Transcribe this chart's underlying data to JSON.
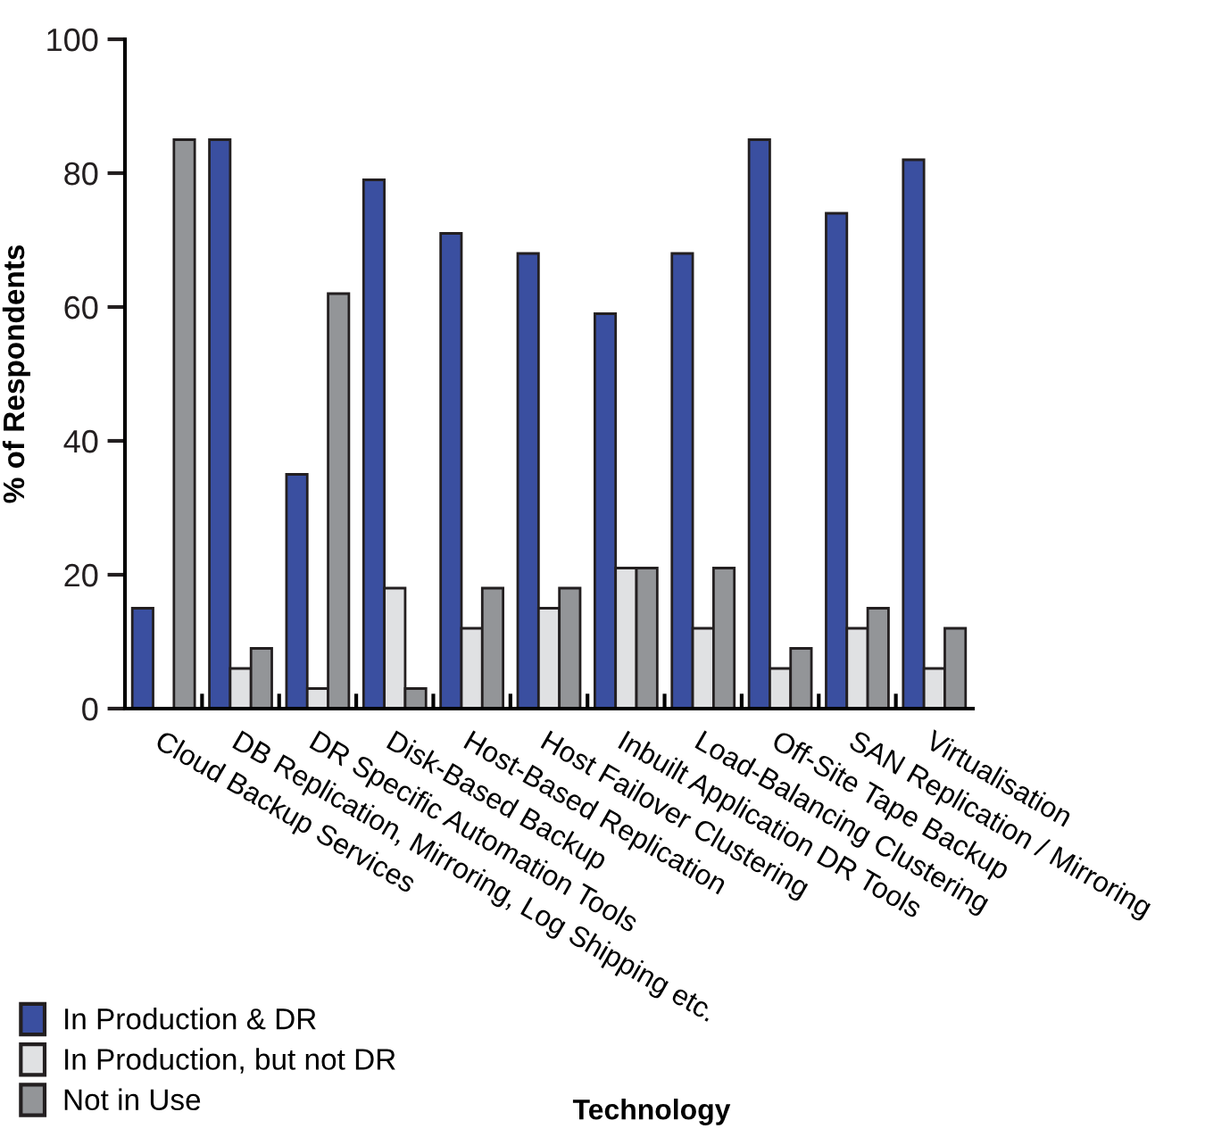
{
  "chart_data": {
    "type": "bar",
    "xlabel": "Technology",
    "ylabel": "% of Respondents",
    "categories": [
      "Cloud Backup Services",
      "DB Replication, Mirroring, Log Shipping etc.",
      "DR Specific Automation Tools",
      "Disk-Based Backup",
      "Host-Based Replication",
      "Host Failover Clustering",
      "Inbuilt Application DR Tools",
      "Load-Balancing Clustering",
      "Off-Site Tape Backup",
      "SAN Replication / Mirroring",
      "Virtualisation"
    ],
    "series": [
      {
        "name": "In Production & DR",
        "color": "#3a4fa0",
        "values": [
          15,
          85,
          35,
          79,
          71,
          68,
          59,
          68,
          85,
          74,
          82
        ]
      },
      {
        "name": "In Production, but not DR",
        "color": "#e0e1e3",
        "values": [
          null,
          6,
          3,
          18,
          12,
          15,
          21,
          12,
          6,
          12,
          6
        ]
      },
      {
        "name": "Not in Use",
        "color": "#939598",
        "values": [
          85,
          9,
          62,
          3,
          18,
          18,
          21,
          21,
          9,
          15,
          12
        ]
      }
    ],
    "ylim": [
      0,
      100
    ],
    "yticks": [
      0,
      20,
      40,
      60,
      80,
      100
    ],
    "grid": false,
    "legend": "bottom left"
  }
}
